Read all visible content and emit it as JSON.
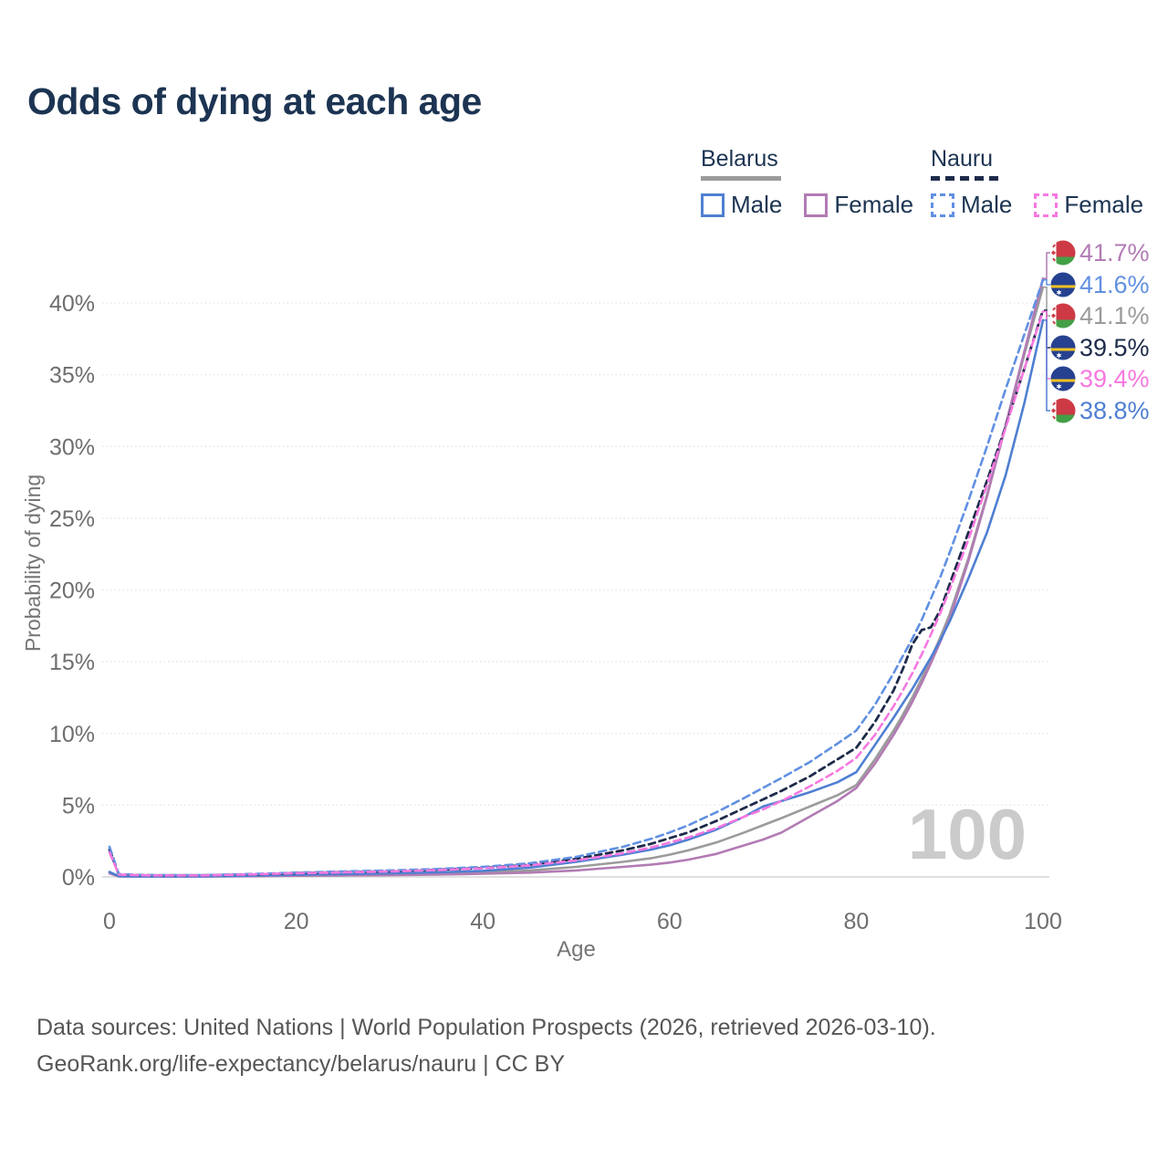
{
  "title": "Odds of dying at each age",
  "legend": {
    "groups": [
      {
        "label": "Belarus",
        "line_style": "solid",
        "underline_color": "#9b9b9b",
        "items": [
          {
            "label": "Male",
            "color": "#4f7fd2"
          },
          {
            "label": "Female",
            "color": "#b27bb4"
          }
        ]
      },
      {
        "label": "Nauru",
        "line_style": "dashed",
        "underline_color": "#1e2b4a",
        "items": [
          {
            "label": "Male",
            "color": "#6190e2"
          },
          {
            "label": "Female",
            "color": "#f678e0"
          }
        ]
      }
    ]
  },
  "watermark": "100",
  "end_labels": [
    {
      "value": "41.7%",
      "flag": "belarus-flag-icon",
      "series": "belarus_female"
    },
    {
      "value": "41.6%",
      "flag": "nauru-flag-icon",
      "series": "nauru_male"
    },
    {
      "value": "41.1%",
      "flag": "belarus-flag-icon",
      "series": "belarus_overall"
    },
    {
      "value": "39.5%",
      "flag": "nauru-flag-icon",
      "series": "nauru_overall"
    },
    {
      "value": "39.4%",
      "flag": "nauru-flag-icon",
      "series": "nauru_female"
    },
    {
      "value": "38.8%",
      "flag": "belarus-flag-icon",
      "series": "belarus_male"
    }
  ],
  "footer": {
    "line1": "Data sources: United Nations | World Population Prospects (2026, retrieved 2026-03-10).",
    "line2": "GeoRank.org/life-expectancy/belarus/nauru | CC BY"
  },
  "chart_data": {
    "type": "line",
    "title": "Odds of dying at each age",
    "xlabel": "Age",
    "ylabel": "Probability of dying",
    "xlim": [
      0,
      100
    ],
    "ylim": [
      0,
      42
    ],
    "x_ticks": [
      0,
      20,
      40,
      60,
      80,
      100
    ],
    "y_ticks": [
      "0%",
      "5%",
      "10%",
      "15%",
      "20%",
      "25%",
      "30%",
      "35%",
      "40%"
    ],
    "grid": "horizontal-only",
    "legend_position": "top-right",
    "ages": [
      0,
      1,
      3,
      5,
      10,
      15,
      20,
      25,
      30,
      35,
      40,
      45,
      50,
      55,
      58,
      60,
      62,
      65,
      68,
      70,
      72,
      75,
      78,
      80,
      82,
      84,
      85,
      86,
      87,
      88,
      89,
      90,
      92,
      94,
      96,
      98,
      100
    ],
    "series": [
      {
        "key": "belarus_overall",
        "name": "Belarus",
        "country": "Belarus",
        "sex": "Both",
        "color": "#9b9b9b",
        "dash": "solid",
        "end_value_percent": 41.1,
        "values": [
          0.3,
          0.04,
          0.035,
          0.035,
          0.035,
          0.06,
          0.1,
          0.14,
          0.18,
          0.23,
          0.3,
          0.45,
          0.7,
          1.05,
          1.3,
          1.55,
          1.85,
          2.4,
          3.1,
          3.6,
          4.1,
          4.9,
          5.7,
          6.4,
          8.2,
          10.2,
          11.3,
          12.5,
          13.8,
          15.2,
          16.7,
          18.3,
          22.2,
          26.6,
          31.4,
          36.4,
          41.1
        ]
      },
      {
        "key": "belarus_female",
        "name": "Belarus Female",
        "country": "Belarus",
        "sex": "Female",
        "color": "#b27bb4",
        "dash": "solid",
        "end_value_percent": 41.7,
        "values": [
          0.25,
          0.03,
          0.03,
          0.03,
          0.03,
          0.05,
          0.08,
          0.1,
          0.12,
          0.16,
          0.22,
          0.3,
          0.45,
          0.7,
          0.85,
          1.0,
          1.2,
          1.6,
          2.2,
          2.6,
          3.1,
          4.2,
          5.3,
          6.2,
          7.9,
          9.9,
          11.0,
          12.2,
          13.5,
          14.9,
          16.4,
          18.0,
          22.0,
          26.5,
          31.5,
          36.6,
          41.7
        ]
      },
      {
        "key": "belarus_male",
        "name": "Belarus Male",
        "country": "Belarus",
        "sex": "Male",
        "color": "#4f7fd2",
        "dash": "solid",
        "end_value_percent": 38.8,
        "values": [
          0.35,
          0.05,
          0.04,
          0.04,
          0.04,
          0.08,
          0.15,
          0.2,
          0.25,
          0.32,
          0.42,
          0.65,
          1.05,
          1.55,
          1.9,
          2.2,
          2.6,
          3.3,
          4.2,
          4.9,
          5.3,
          5.9,
          6.6,
          7.3,
          9.2,
          11.1,
          12.1,
          13.1,
          14.2,
          15.3,
          16.5,
          17.8,
          20.8,
          24.0,
          28.0,
          33.0,
          38.8
        ]
      },
      {
        "key": "nauru_overall",
        "name": "Nauru",
        "country": "Nauru",
        "sex": "Both",
        "color": "#1e2b4a",
        "dash": "dashed",
        "end_value_percent": 39.5,
        "values": [
          1.9,
          0.18,
          0.13,
          0.11,
          0.11,
          0.18,
          0.27,
          0.33,
          0.4,
          0.5,
          0.62,
          0.85,
          1.25,
          1.85,
          2.3,
          2.7,
          3.1,
          3.9,
          4.8,
          5.4,
          6.0,
          7.0,
          8.2,
          9.0,
          10.8,
          13.0,
          14.5,
          16.2,
          17.2,
          17.4,
          18.6,
          20.4,
          24.0,
          27.6,
          31.4,
          35.4,
          39.5
        ]
      },
      {
        "key": "nauru_male",
        "name": "Nauru Male",
        "country": "Nauru",
        "sex": "Male",
        "color": "#6190e2",
        "dash": "dashed",
        "end_value_percent": 41.6,
        "values": [
          2.1,
          0.2,
          0.14,
          0.12,
          0.12,
          0.2,
          0.3,
          0.38,
          0.45,
          0.55,
          0.7,
          0.95,
          1.4,
          2.1,
          2.65,
          3.1,
          3.6,
          4.5,
          5.5,
          6.2,
          6.9,
          8.0,
          9.3,
          10.2,
          12.0,
          14.2,
          15.4,
          16.6,
          17.9,
          19.4,
          20.9,
          22.6,
          26.2,
          30.0,
          34.0,
          37.8,
          41.6
        ]
      },
      {
        "key": "nauru_female",
        "name": "Nauru Female",
        "country": "Nauru",
        "sex": "Female",
        "color": "#f678e0",
        "dash": "dashed",
        "end_value_percent": 39.4,
        "values": [
          1.7,
          0.16,
          0.12,
          0.1,
          0.1,
          0.17,
          0.26,
          0.32,
          0.38,
          0.48,
          0.6,
          0.8,
          1.15,
          1.65,
          2.05,
          2.4,
          2.75,
          3.4,
          4.2,
          4.7,
          5.3,
          6.3,
          7.4,
          8.3,
          9.9,
          11.9,
          13.0,
          14.2,
          15.5,
          16.9,
          18.4,
          20.0,
          23.5,
          27.3,
          31.3,
          35.4,
          39.4
        ]
      }
    ]
  }
}
